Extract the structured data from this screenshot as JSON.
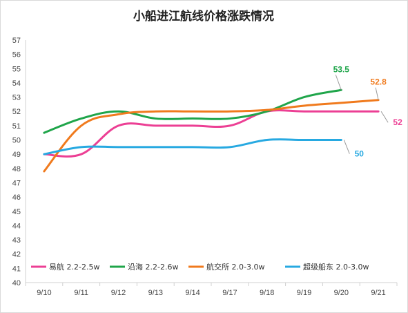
{
  "chart_data": {
    "type": "line",
    "title": "小船进江航线价格涨跌情况",
    "xlabel": "",
    "ylabel": "",
    "categories": [
      "9/10",
      "9/11",
      "9/12",
      "9/13",
      "9/14",
      "9/17",
      "9/18",
      "9/19",
      "9/20",
      "9/21"
    ],
    "ylim": [
      40,
      57
    ],
    "yticks": [
      40,
      41,
      42,
      43,
      44,
      45,
      46,
      47,
      48,
      49,
      50,
      51,
      52,
      53,
      54,
      55,
      56,
      57
    ],
    "grid": false,
    "legend_position": "bottom",
    "series": [
      {
        "name": "易航 2.2-2.5w",
        "color": "#ec3f94",
        "values": [
          49.0,
          49.0,
          51.0,
          51.0,
          51.0,
          51.0,
          52.0,
          52.0,
          52.0,
          52.0
        ],
        "end_label": "52"
      },
      {
        "name": "沿海 2.2-2.6w",
        "color": "#1fa54a",
        "values": [
          50.5,
          51.5,
          52.0,
          51.5,
          51.5,
          51.5,
          52.0,
          53.0,
          53.5,
          null
        ],
        "end_label": "53.5"
      },
      {
        "name": "航交所 2.0-3.0w",
        "color": "#f07a1d",
        "values": [
          47.8,
          51.0,
          51.8,
          52.0,
          52.0,
          52.0,
          52.1,
          52.4,
          52.6,
          52.8
        ],
        "end_label": "52.8"
      },
      {
        "name": "超级船东 2.0-3.0w",
        "color": "#27a9e1",
        "values": [
          49.0,
          49.5,
          49.5,
          49.5,
          49.5,
          49.5,
          50.0,
          50.0,
          50.0,
          null
        ],
        "end_label": "50"
      }
    ]
  }
}
